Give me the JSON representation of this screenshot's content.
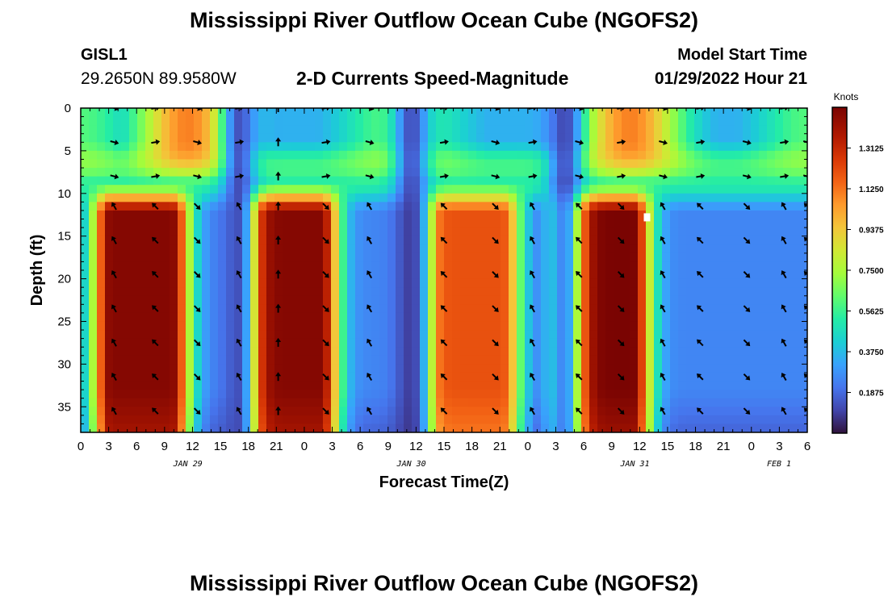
{
  "page": {
    "title_top": "Mississippi River Outflow Ocean Cube (NGOFS2)",
    "title_bottom": "Mississippi River Outflow Ocean Cube (NGOFS2)",
    "station_id": "GISL1",
    "station_coords": "29.2650N  89.9580W",
    "plot_title": "2-D Currents Speed-Magnitude",
    "start_label": "Model Start Time",
    "start_value": "01/29/2022 Hour 21"
  },
  "chart_data": {
    "type": "heatmap",
    "xlabel": "Forecast Time(Z)",
    "ylabel": "Depth (ft)",
    "x_unit": "hours from Jan 29 00Z",
    "xlim": [
      0,
      78
    ],
    "ylim": [
      0,
      38
    ],
    "x_ticks": [
      0,
      3,
      6,
      9,
      12,
      15,
      18,
      21,
      24,
      27,
      30,
      33,
      36,
      39,
      42,
      45,
      48,
      51,
      54,
      57,
      60,
      63,
      66,
      69,
      72,
      75,
      78
    ],
    "x_tick_labels": [
      "0",
      "3",
      "6",
      "9",
      "12",
      "15",
      "18",
      "21",
      "0",
      "3",
      "6",
      "9",
      "12",
      "15",
      "18",
      "21",
      "0",
      "3",
      "6",
      "9",
      "12",
      "15",
      "18",
      "21",
      "0",
      "3",
      "6"
    ],
    "y_ticks": [
      0,
      5,
      10,
      15,
      20,
      25,
      30,
      35
    ],
    "y_tick_labels": [
      "0",
      "5",
      "10",
      "15",
      "20",
      "25",
      "30",
      "35"
    ],
    "date_labels": [
      {
        "label": "JAN 29",
        "hour": 11.5
      },
      {
        "label": "JAN 30",
        "hour": 35.5
      },
      {
        "label": "JAN 31",
        "hour": 59.5
      },
      {
        "label": "FEB 1",
        "hour": 83.5
      }
    ],
    "colorbar": {
      "unit": "Knots",
      "min": 0,
      "max": 1.5,
      "tick_values": [
        0.1875,
        0.375,
        0.5625,
        0.75,
        0.9375,
        1.125,
        1.3125
      ],
      "tick_labels": [
        "0.1875",
        "0.3750",
        "0.5625",
        "0.7500",
        "0.9375",
        "1.1250",
        "1.3125"
      ]
    },
    "speed_peak_hours": [
      6.5,
      22.5,
      42,
      56
    ],
    "speed_peak_values": [
      1.42,
      1.42,
      1.1,
      1.45
    ],
    "speed_low_hours": [
      17,
      35.5,
      52
    ],
    "arrow_times": [
      3.6,
      8,
      12.5,
      17,
      21.2,
      26.3,
      31,
      39,
      44.5,
      48.5,
      53.5,
      58,
      62.5,
      66.5,
      71.5,
      75.5,
      78
    ],
    "arrow_depths": [
      0,
      4,
      8,
      11.5,
      15.5,
      19.5,
      23.5,
      27.5,
      31.5,
      35.5
    ],
    "marker": {
      "hour": 60.8,
      "depth": 12.8
    }
  }
}
